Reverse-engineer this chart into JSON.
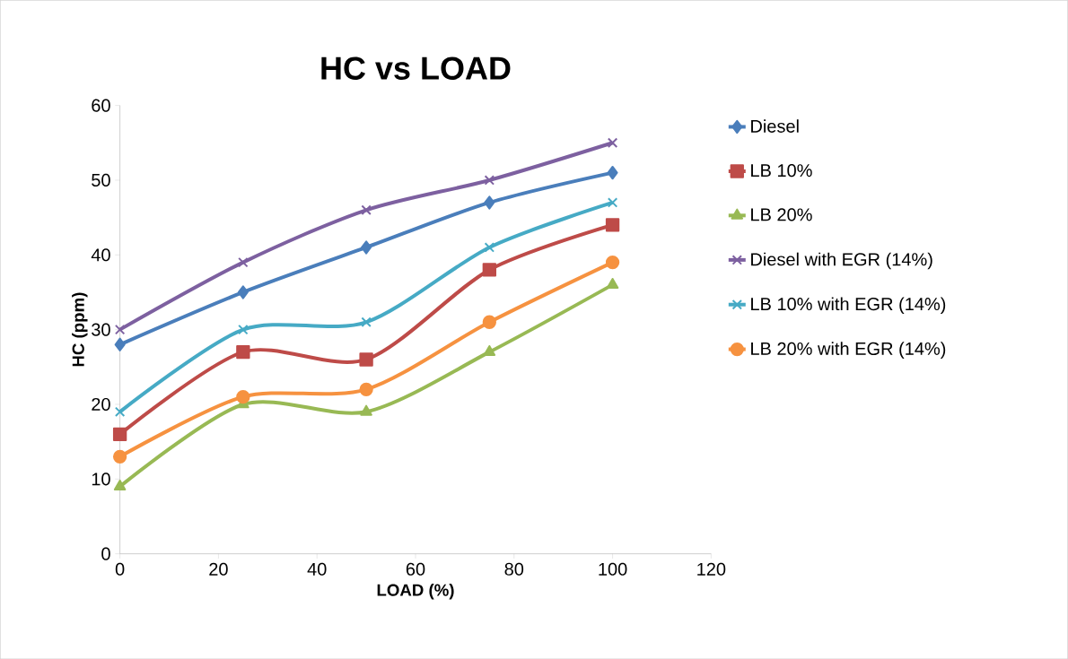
{
  "chart_data": {
    "type": "line",
    "title": "HC vs LOAD",
    "xlabel": "LOAD (%)",
    "ylabel": "HC (ppm)",
    "x": [
      0,
      25,
      50,
      75,
      100
    ],
    "series": [
      {
        "name": "Diesel",
        "color": "#4a7ebb",
        "marker": "diamond",
        "values": [
          28,
          35,
          41,
          47,
          51
        ]
      },
      {
        "name": "LB 10%",
        "color": "#be4b48",
        "marker": "square",
        "values": [
          16,
          27,
          26,
          38,
          44
        ]
      },
      {
        "name": "LB 20%",
        "color": "#98b954",
        "marker": "triangle",
        "values": [
          9,
          20,
          19,
          27,
          36
        ]
      },
      {
        "name": "Diesel with EGR (14%)",
        "color": "#7d60a0",
        "marker": "cross",
        "values": [
          30,
          39,
          46,
          50,
          55
        ]
      },
      {
        "name": "LB 10% with EGR (14%)",
        "color": "#46aac5",
        "marker": "cross",
        "values": [
          19,
          30,
          31,
          41,
          47
        ]
      },
      {
        "name": "LB 20% with EGR (14%)",
        "color": "#f69240",
        "marker": "circle",
        "values": [
          13,
          21,
          22,
          31,
          39
        ]
      }
    ],
    "xlim": [
      0,
      120
    ],
    "xticks": [
      0,
      20,
      40,
      60,
      80,
      100,
      120
    ],
    "ylim": [
      0,
      60
    ],
    "yticks": [
      0,
      10,
      20,
      30,
      40,
      50,
      60
    ],
    "grid": false,
    "legend": "right",
    "line_style": "solid"
  }
}
